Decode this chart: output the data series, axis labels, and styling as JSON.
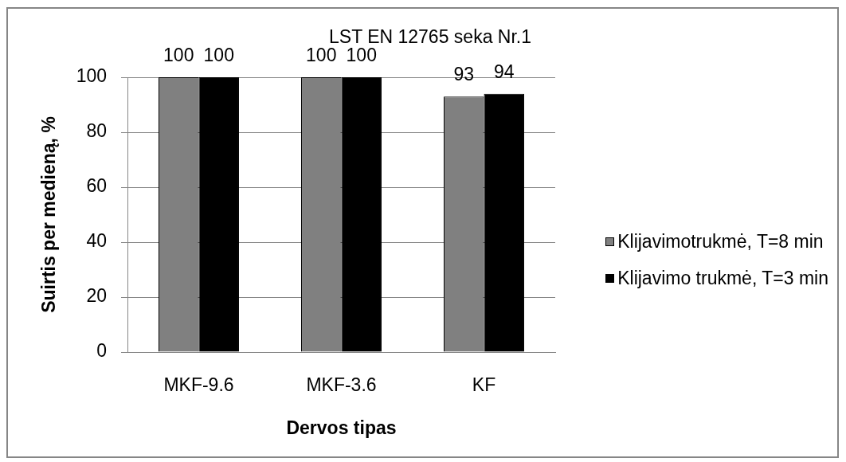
{
  "chart_data": {
    "type": "bar",
    "title": "LST EN 12765 seka Nr.1",
    "xlabel": "Dervos tipas",
    "ylabel": "Suirtis per medieną, %",
    "categories": [
      "MKF-9.6",
      "MKF-3.6",
      "KF"
    ],
    "series": [
      {
        "name": "Klijavimotrukmė, T=8 min",
        "color": "#808080",
        "values": [
          100,
          100,
          93
        ]
      },
      {
        "name": "Klijavimo trukmė, T=3 min",
        "color": "#000000",
        "values": [
          100,
          100,
          94
        ]
      }
    ],
    "ylim": [
      0,
      100
    ],
    "yticks": [
      0,
      20,
      40,
      60,
      80,
      100
    ],
    "grid": "y",
    "legend": "right",
    "data_labels": true
  }
}
